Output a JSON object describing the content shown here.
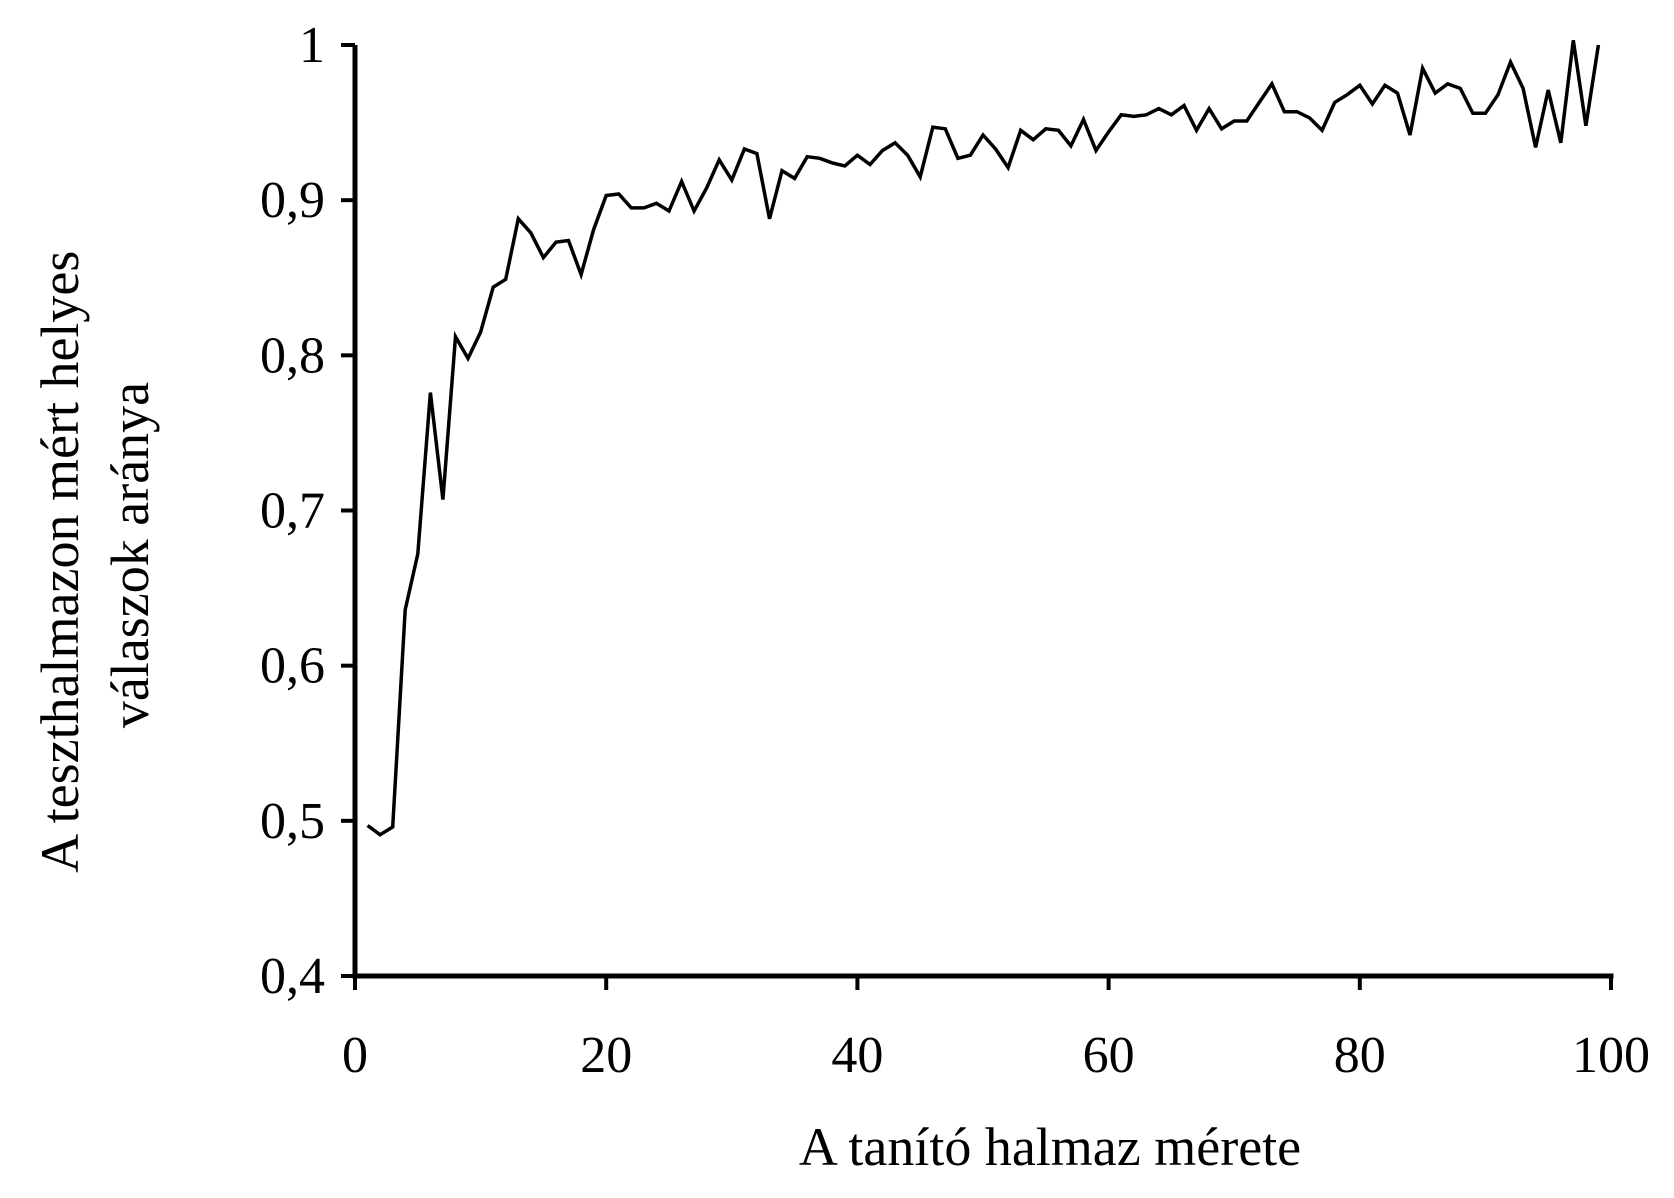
{
  "chart_data": {
    "type": "line",
    "title": "",
    "xlabel": "A tanító halmaz mérete",
    "ylabel_lines": [
      "A teszthalmazon mért helyes",
      "válaszok aránya"
    ],
    "xlim": [
      0,
      100
    ],
    "ylim": [
      0.4,
      1.0
    ],
    "x_ticks": [
      0,
      20,
      40,
      60,
      80,
      100
    ],
    "x_tick_labels": [
      "0",
      "20",
      "40",
      "60",
      "80",
      "100"
    ],
    "y_ticks": [
      0.4,
      0.5,
      0.6,
      0.7,
      0.8,
      0.9,
      1.0
    ],
    "y_tick_labels": [
      "0,4",
      "0,5",
      "0,6",
      "0,7",
      "0,8",
      "0,9",
      "1"
    ],
    "grid": false,
    "legend": "none",
    "line_color": "#000000",
    "series": [
      {
        "x": [
          1,
          2,
          3,
          4,
          5,
          6,
          7,
          8,
          9,
          10,
          11,
          12,
          13,
          14,
          15,
          16,
          17,
          18,
          19,
          20,
          21,
          22,
          23,
          24,
          25,
          26,
          27,
          28,
          29,
          30,
          31,
          32,
          33,
          34,
          35,
          36,
          37,
          38,
          39,
          40,
          41,
          42,
          43,
          44,
          45,
          46,
          47,
          48,
          49,
          50,
          51,
          52,
          53,
          54,
          55,
          56,
          57,
          58,
          59,
          60,
          61,
          62,
          63,
          64,
          65,
          66,
          67,
          68,
          69,
          70,
          71,
          72,
          73,
          74,
          75,
          76,
          77,
          78,
          79,
          80,
          81,
          82,
          83,
          84,
          85,
          86,
          87,
          88,
          89,
          90,
          91,
          92,
          93,
          94,
          95,
          96,
          97,
          98,
          99
        ],
        "values": [
          0.497,
          0.491,
          0.496,
          0.636,
          0.672,
          0.776,
          0.707,
          0.812,
          0.798,
          0.815,
          0.844,
          0.849,
          0.888,
          0.879,
          0.863,
          0.873,
          0.874,
          0.852,
          0.881,
          0.903,
          0.904,
          0.895,
          0.895,
          0.898,
          0.893,
          0.912,
          0.893,
          0.908,
          0.926,
          0.913,
          0.933,
          0.93,
          0.888,
          0.919,
          0.914,
          0.928,
          0.927,
          0.924,
          0.922,
          0.929,
          0.923,
          0.932,
          0.937,
          0.929,
          0.915,
          0.947,
          0.946,
          0.927,
          0.929,
          0.942,
          0.933,
          0.921,
          0.945,
          0.939,
          0.946,
          0.945,
          0.935,
          0.952,
          0.932,
          0.944,
          0.955,
          0.954,
          0.955,
          0.959,
          0.955,
          0.961,
          0.945,
          0.959,
          0.946,
          0.951,
          0.951,
          0.963,
          0.975,
          0.957,
          0.957,
          0.953,
          0.945,
          0.963,
          0.968,
          0.974,
          0.962,
          0.974,
          0.969,
          0.942,
          0.985,
          0.969,
          0.975,
          0.972,
          0.956,
          0.956,
          0.968,
          0.989,
          0.972,
          0.934,
          0.971,
          0.937,
          1.003,
          0.948,
          1.0
        ]
      }
    ]
  }
}
